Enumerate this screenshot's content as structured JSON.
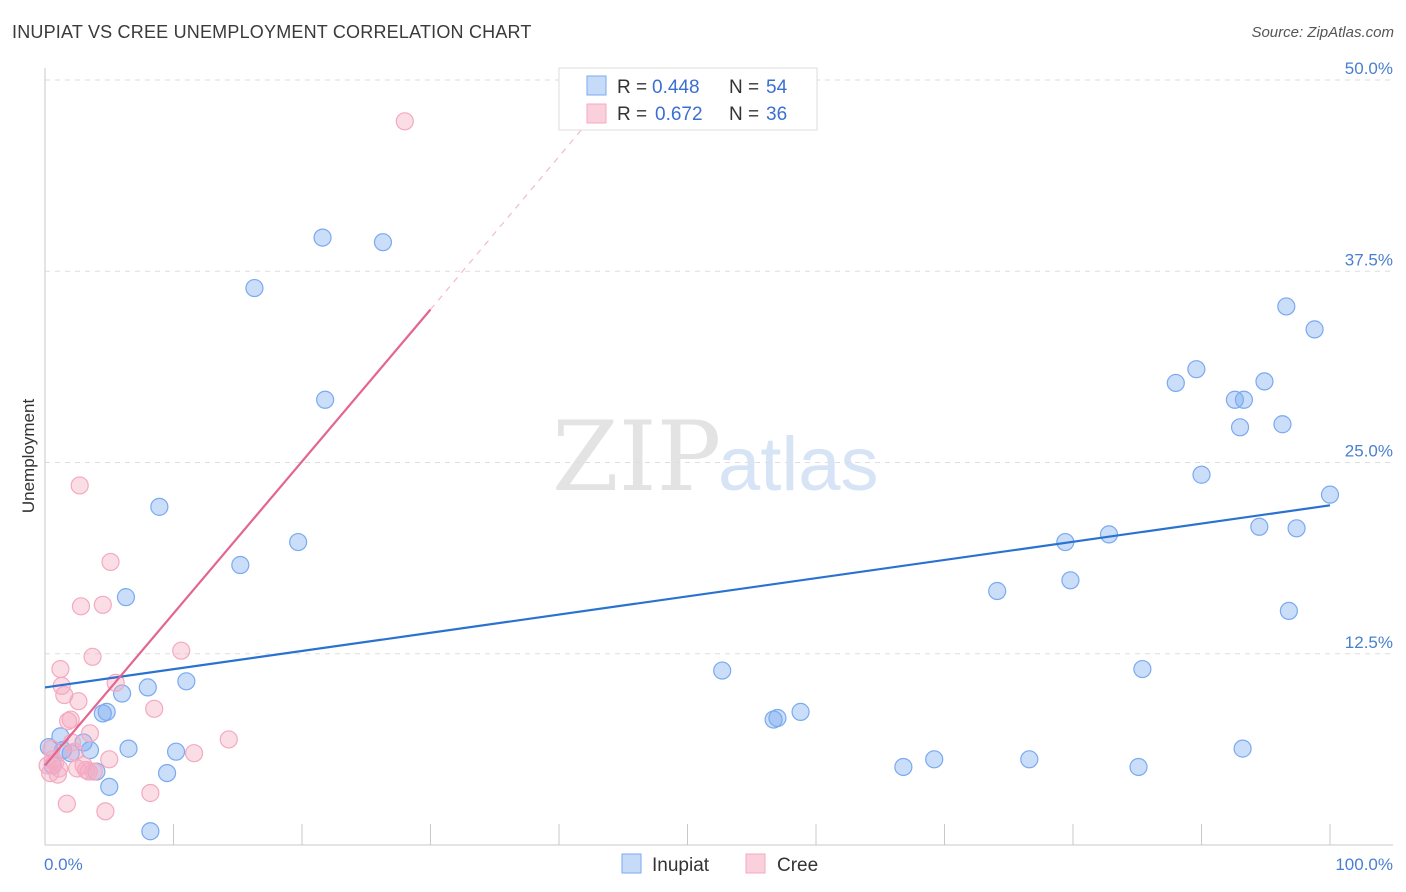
{
  "header": {
    "title": "INUPIAT VS CREE UNEMPLOYMENT CORRELATION CHART",
    "source": "Source: ZipAtlas.com"
  },
  "watermark": {
    "zip": "ZIP",
    "atlas": "atlas"
  },
  "chart_data": {
    "type": "scatter",
    "ylabel": "Unemployment",
    "xlim": [
      0,
      100
    ],
    "ylim": [
      0,
      50
    ],
    "x_tick_labels": [
      "0.0%",
      "100.0%"
    ],
    "y_ticks": [
      {
        "value": 12.5,
        "label": "12.5%"
      },
      {
        "value": 25.0,
        "label": "25.0%"
      },
      {
        "value": 37.5,
        "label": "37.5%"
      },
      {
        "value": 50.0,
        "label": "50.0%"
      }
    ],
    "grid": "horizontal-dashed",
    "legend_position": "top-center",
    "series": [
      {
        "name": "Inupiat",
        "color": "#7aaaf0",
        "line_color": "#2a72d0",
        "r_label": "R =",
        "r_value": "0.448",
        "n_label": "N =",
        "n_value": "54",
        "trend": {
          "x0": 0,
          "y0": 10.3,
          "x1": 100,
          "y1": 22.2
        },
        "points": [
          [
            0.3,
            6.4
          ],
          [
            0.6,
            5.2
          ],
          [
            1.2,
            7.1
          ],
          [
            1.4,
            6.2
          ],
          [
            2.0,
            6.0
          ],
          [
            3.0,
            6.7
          ],
          [
            3.5,
            6.2
          ],
          [
            4.0,
            4.8
          ],
          [
            5.0,
            3.8
          ],
          [
            4.5,
            8.6
          ],
          [
            4.8,
            8.7
          ],
          [
            6.0,
            9.9
          ],
          [
            6.3,
            16.2
          ],
          [
            6.5,
            6.3
          ],
          [
            8.0,
            10.3
          ],
          [
            8.2,
            0.9
          ],
          [
            8.9,
            22.1
          ],
          [
            9.5,
            4.7
          ],
          [
            10.2,
            6.1
          ],
          [
            11.0,
            10.7
          ],
          [
            15.2,
            18.3
          ],
          [
            16.3,
            36.4
          ],
          [
            19.7,
            19.8
          ],
          [
            21.6,
            39.7
          ],
          [
            21.8,
            29.1
          ],
          [
            26.3,
            39.4
          ],
          [
            52.7,
            11.4
          ],
          [
            56.7,
            8.2
          ],
          [
            57.0,
            8.3
          ],
          [
            58.8,
            8.7
          ],
          [
            66.8,
            5.1
          ],
          [
            69.2,
            5.6
          ],
          [
            74.1,
            16.6
          ],
          [
            76.6,
            5.6
          ],
          [
            79.4,
            19.8
          ],
          [
            79.8,
            17.3
          ],
          [
            82.8,
            20.3
          ],
          [
            85.1,
            5.1
          ],
          [
            85.4,
            11.5
          ],
          [
            88.0,
            30.2
          ],
          [
            89.6,
            31.1
          ],
          [
            90.0,
            24.2
          ],
          [
            92.6,
            29.1
          ],
          [
            93.0,
            27.3
          ],
          [
            93.3,
            29.1
          ],
          [
            94.5,
            20.8
          ],
          [
            94.9,
            30.3
          ],
          [
            96.3,
            27.5
          ],
          [
            96.6,
            35.2
          ],
          [
            96.8,
            15.3
          ],
          [
            97.4,
            20.7
          ],
          [
            98.8,
            33.7
          ],
          [
            100.0,
            22.9
          ],
          [
            93.2,
            6.3
          ]
        ]
      },
      {
        "name": "Cree",
        "color": "#f4a9c0",
        "line_color": "#e36590",
        "r_label": "R =",
        "r_value": "0.672",
        "n_label": "N =",
        "n_value": "36",
        "trend": {
          "x0": 0,
          "y0": 5.2,
          "x1": 30.0,
          "y1": 35.0
        },
        "trend_dashed": {
          "x0": 30.0,
          "y0": 35.0,
          "x1": 42.5,
          "y1": 47.5
        },
        "points": [
          [
            0.2,
            5.2
          ],
          [
            0.4,
            4.7
          ],
          [
            0.6,
            5.6
          ],
          [
            0.8,
            5.4
          ],
          [
            1.0,
            4.6
          ],
          [
            1.2,
            11.5
          ],
          [
            1.3,
            10.4
          ],
          [
            1.5,
            9.8
          ],
          [
            1.7,
            2.7
          ],
          [
            1.8,
            8.1
          ],
          [
            2.0,
            8.2
          ],
          [
            2.3,
            6.1
          ],
          [
            2.5,
            5.0
          ],
          [
            2.6,
            9.4
          ],
          [
            2.7,
            23.5
          ],
          [
            2.8,
            15.6
          ],
          [
            3.0,
            5.2
          ],
          [
            3.2,
            4.9
          ],
          [
            3.4,
            4.8
          ],
          [
            3.5,
            7.3
          ],
          [
            3.7,
            12.3
          ],
          [
            3.8,
            4.8
          ],
          [
            4.5,
            15.7
          ],
          [
            4.7,
            2.2
          ],
          [
            5.1,
            18.5
          ],
          [
            5.0,
            5.6
          ],
          [
            5.5,
            10.6
          ],
          [
            8.2,
            3.4
          ],
          [
            8.5,
            8.9
          ],
          [
            10.6,
            12.7
          ],
          [
            11.6,
            6.0
          ],
          [
            14.3,
            6.9
          ],
          [
            28.0,
            47.3
          ],
          [
            1.1,
            5.0
          ],
          [
            2.1,
            6.7
          ],
          [
            0.5,
            6.3
          ]
        ]
      }
    ]
  }
}
